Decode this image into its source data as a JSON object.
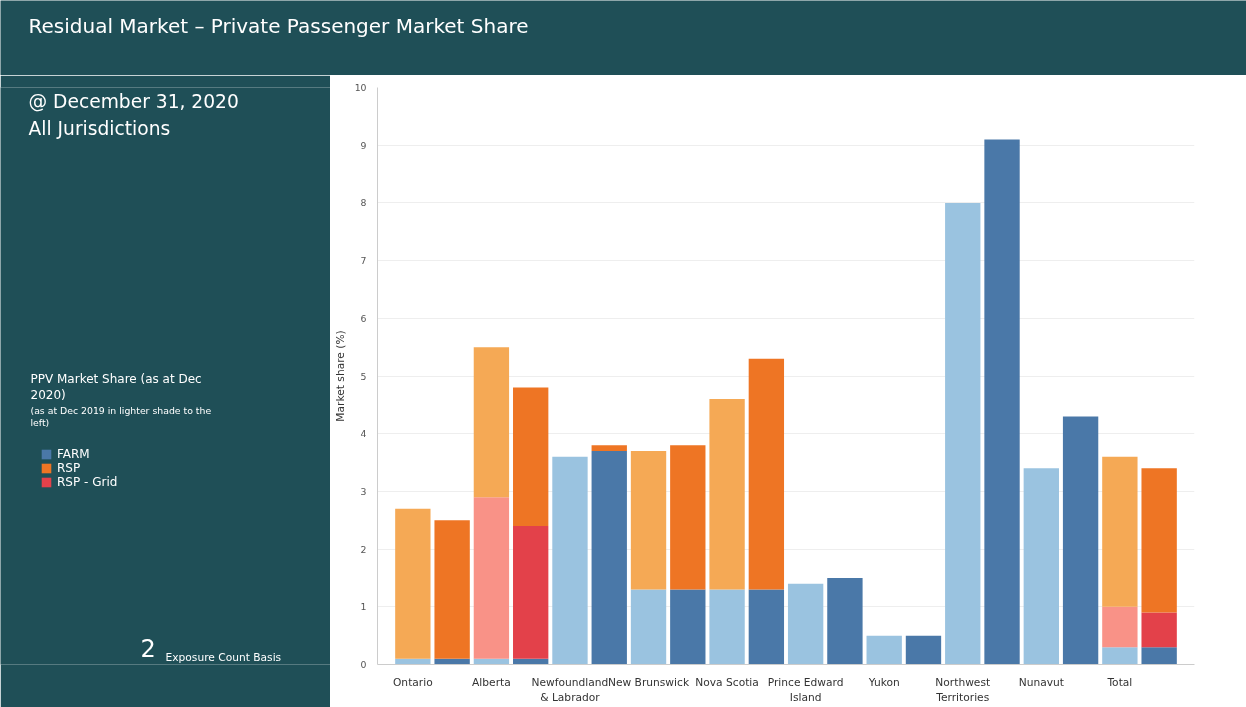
{
  "chart_data": {
    "type": "bar",
    "title": "Residual Market – Private Passenger Market Share",
    "subtitle": "@ December 31, 2020\nAll Jurisdictions",
    "ylabel": "Market share (%)",
    "legend_title": "PPV Market Share (as at Dec\n2020)",
    "annotations": [
      "(as at Dec 2019 in lighter shade to the\nleft)",
      "2",
      "Exposure Count Basis"
    ],
    "categories": [
      "Ontario",
      null,
      "Alberta",
      null,
      "Newfoundland\n& Labrador",
      null,
      "New Brunswick",
      null,
      "Nova Scotia",
      null,
      "Prince Edward\nIsland",
      null,
      "Yukon",
      null,
      "Northwest\nTerritories",
      null,
      "Nunavut",
      null,
      "Total",
      null
    ],
    "stacked": true,
    "ylim": [
      0,
      10
    ],
    "yticks": [
      0,
      1,
      2,
      3,
      4,
      5,
      6,
      7,
      8,
      9,
      10
    ],
    "grid": "y",
    "legend": "left",
    "series": [
      {
        "name": "FARM",
        "colors": [
          "#9ac3e0",
          "#4a78a8",
          "#9ac3e0",
          "#4a78a8",
          "#9ac3e0",
          "#4a78a8",
          "#9ac3e0",
          "#4a78a8",
          "#9ac3e0",
          "#4a78a8",
          "#9ac3e0",
          "#4a78a8",
          "#9ac3e0",
          "#4a78a8",
          "#9ac3e0",
          "#4a78a8",
          "#9ac3e0",
          "#4a78a8",
          "#9ac3e0",
          "#4a78a8"
        ],
        "values": [
          0.1,
          0.1,
          0.1,
          0.1,
          3.6,
          3.7,
          1.3,
          1.3,
          1.3,
          1.3,
          1.4,
          1.5,
          0.5,
          0.5,
          8.0,
          9.1,
          3.4,
          4.3,
          0.3,
          0.3
        ]
      },
      {
        "name": "RSP - Grid",
        "colors": [
          "#f99287",
          "#e3414a",
          "#f99287",
          "#e3414a",
          "#f99287",
          "#e3414a",
          "#f99287",
          "#e3414a",
          "#f99287",
          "#e3414a",
          "#f99287",
          "#e3414a",
          "#f99287",
          "#e3414a",
          "#f99287",
          "#e3414a",
          "#f99287",
          "#e3414a",
          "#f99287",
          "#e3414a"
        ],
        "values": [
          null,
          null,
          2.8,
          2.3,
          null,
          null,
          null,
          null,
          null,
          null,
          null,
          null,
          null,
          null,
          null,
          null,
          null,
          null,
          0.7,
          0.6
        ]
      },
      {
        "name": "RSP",
        "colors": [
          "#f5a955",
          "#ee7524",
          "#f5a955",
          "#ee7524",
          "#f5a955",
          "#ee7524",
          "#f5a955",
          "#ee7524",
          "#f5a955",
          "#ee7524",
          "#f5a955",
          "#ee7524",
          "#f5a955",
          "#ee7524",
          "#f5a955",
          "#ee7524",
          "#f5a955",
          "#ee7524",
          "#f5a955",
          "#ee7524"
        ],
        "values": [
          2.6,
          2.4,
          2.6,
          2.4,
          null,
          0.1,
          2.4,
          2.5,
          3.3,
          4.0,
          null,
          null,
          null,
          null,
          null,
          null,
          null,
          null,
          2.6,
          2.5
        ]
      }
    ]
  }
}
